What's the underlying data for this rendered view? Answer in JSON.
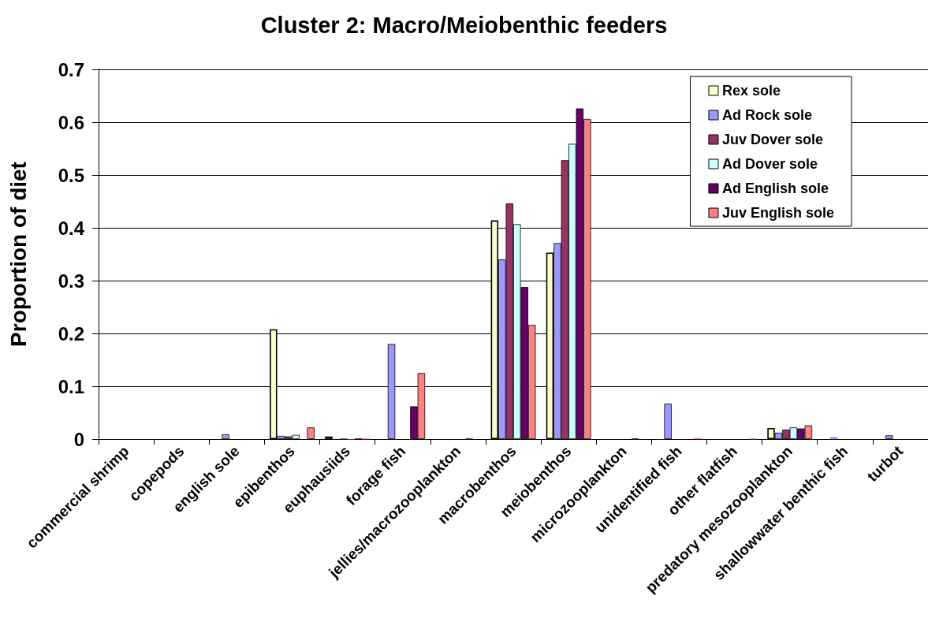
{
  "chart_data": {
    "type": "bar",
    "title": "Cluster 2: Macro/Meiobenthic feeders",
    "ylabel": "Proportion of diet",
    "categories": [
      "commercial shrimp",
      "copepods",
      "english sole",
      "epibenthos",
      "euphausiids",
      "forage fish",
      "jellies/macrozooplankton",
      "macrobenthos",
      "meiobenthos",
      "microzooplankton",
      "unidentified fish",
      "other flatfish",
      "predatory mesozooplankton",
      "shallowwater benthic fish",
      "turbot"
    ],
    "series": [
      {
        "name": "Rex sole",
        "color": "#ffffcc",
        "values": [
          null,
          null,
          null,
          0.208,
          0.005,
          null,
          null,
          0.414,
          0.353,
          null,
          0.002,
          null,
          0.021,
          null,
          null
        ]
      },
      {
        "name": "Ad Rock sole",
        "color": "#9999ff",
        "values": [
          null,
          null,
          0.009,
          0.006,
          null,
          0.18,
          null,
          0.34,
          0.371,
          null,
          0.067,
          null,
          0.012,
          0.004,
          0.007
        ]
      },
      {
        "name": "Juv Dover sole",
        "color": "#993366",
        "values": [
          null,
          null,
          null,
          0.005,
          0.001,
          null,
          null,
          0.446,
          0.528,
          null,
          null,
          null,
          0.018,
          null,
          null
        ]
      },
      {
        "name": "Ad Dover sole",
        "color": "#ccffff",
        "values": [
          null,
          null,
          null,
          0.008,
          0.001,
          null,
          null,
          0.407,
          0.559,
          null,
          null,
          null,
          0.022,
          null,
          null
        ]
      },
      {
        "name": "Ad English sole",
        "color": "#660066",
        "values": [
          null,
          null,
          null,
          null,
          0.001,
          0.062,
          0.001,
          0.288,
          0.626,
          0.001,
          null,
          null,
          0.02,
          null,
          null
        ]
      },
      {
        "name": "Juv English sole",
        "color": "#ff8080",
        "values": [
          null,
          null,
          null,
          0.022,
          0.001,
          0.125,
          null,
          0.216,
          0.606,
          null,
          0.002,
          0.001,
          0.026,
          null,
          null
        ]
      }
    ],
    "ylim": [
      0,
      0.7
    ],
    "yticks": [
      0,
      0.1,
      0.2,
      0.3,
      0.4,
      0.5,
      0.6,
      0.7
    ],
    "grid": "y",
    "legend": "top right"
  }
}
